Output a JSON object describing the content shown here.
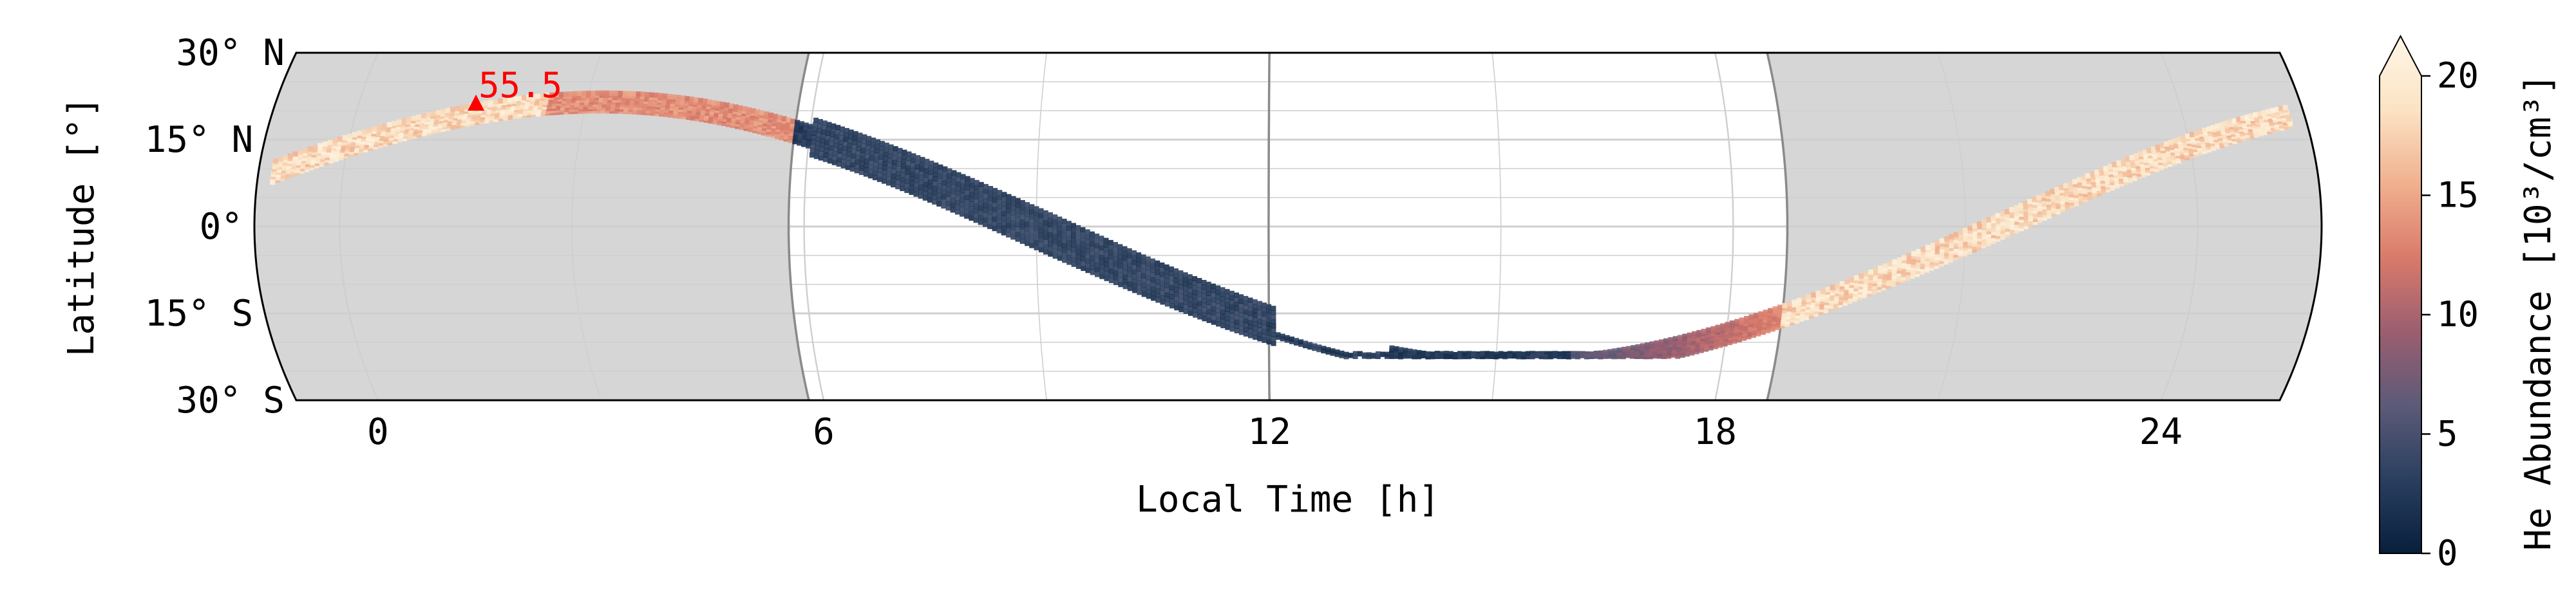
{
  "chart_data": {
    "type": "scatter",
    "title": "",
    "xlabel": "Local Time [h]",
    "ylabel": "Latitude [°]",
    "xlim": [
      -1.1,
      25.6
    ],
    "ylim": [
      -30,
      30
    ],
    "x_ticks": [
      {
        "value": 0,
        "label": "0"
      },
      {
        "value": 6,
        "label": "6"
      },
      {
        "value": 12,
        "label": "12"
      },
      {
        "value": 18,
        "label": "18"
      },
      {
        "value": 24,
        "label": "24"
      }
    ],
    "y_ticks": [
      {
        "value": 30,
        "label": "30° N"
      },
      {
        "value": 15,
        "label": "15° N"
      },
      {
        "value": 0,
        "label": "0°"
      },
      {
        "value": -15,
        "label": "15° S"
      },
      {
        "value": -30,
        "label": "30° S"
      }
    ],
    "night_shading": [
      {
        "from": -1.1,
        "to": 5.8
      },
      {
        "from": 18.7,
        "to": 25.6
      }
    ],
    "night_color": "#d6d6d6",
    "terminator_lines": [
      5.8,
      18.7
    ],
    "noon_line": 12,
    "grid": true,
    "track_model": {
      "description_note": "",
      "peak_local_time": 3.2,
      "amplitude_deg": 23,
      "tracks": 9,
      "track_spread_deg": 2.2
    },
    "marker": {
      "x": 1.55,
      "y": 21,
      "label": "55.5",
      "color": "#ff0000"
    },
    "colorbar": {
      "label": "He Abundance [10³/cm³]",
      "min": 0,
      "max": 20,
      "extend": "max",
      "ticks": [
        0,
        5,
        10,
        15,
        20
      ],
      "colors": [
        "#081f3c",
        "#2a3f5f",
        "#5c5a78",
        "#9b5e70",
        "#d97a6a",
        "#f0b08e",
        "#fbe3c4",
        "#fff6e6"
      ]
    }
  }
}
